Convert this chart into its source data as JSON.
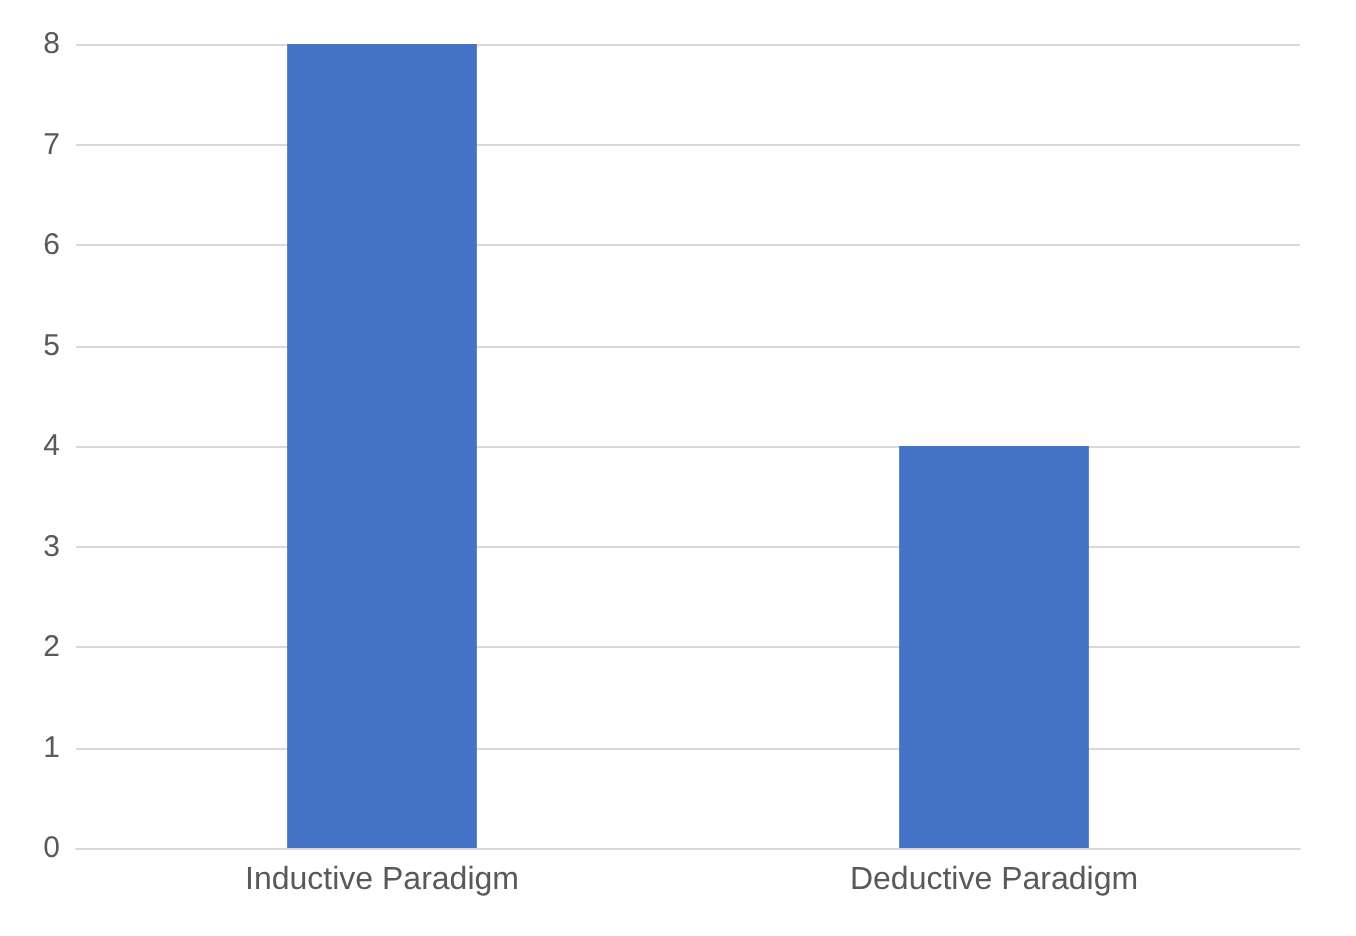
{
  "chart_data": {
    "type": "bar",
    "categories": [
      "Inductive Paradigm",
      "Deductive Paradigm"
    ],
    "values": [
      8,
      4
    ],
    "color": "#4472c4",
    "ylim": [
      0,
      8
    ],
    "yticks": [
      0,
      1,
      2,
      3,
      4,
      5,
      6,
      7,
      8
    ],
    "grid": "y"
  }
}
